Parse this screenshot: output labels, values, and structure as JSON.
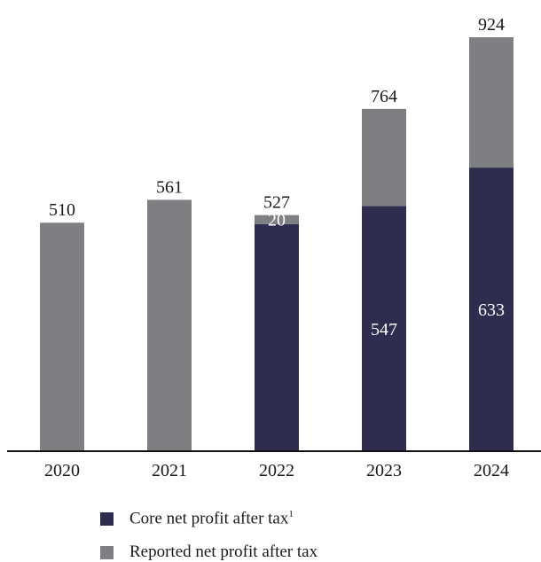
{
  "colors": {
    "core": "#2e2d4f",
    "reported": "#7e7f83",
    "axis": "#111111"
  },
  "chart_data": {
    "type": "bar",
    "stacked": true,
    "categories": [
      "2020",
      "2021",
      "2022",
      "2023",
      "2024"
    ],
    "totals": [
      510,
      561,
      527,
      764,
      924
    ],
    "series": [
      {
        "name": "Core net profit after tax",
        "values": [
          0,
          0,
          507,
          547,
          633
        ],
        "labels": [
          "",
          "",
          "",
          "547",
          "633"
        ]
      },
      {
        "name": "Reported net profit after tax",
        "values": [
          510,
          561,
          20,
          217,
          291
        ],
        "labels": [
          "",
          "",
          "20",
          "",
          ""
        ]
      }
    ],
    "legend": [
      {
        "label": "Core net profit after tax",
        "footnote": "1",
        "color_key": "core"
      },
      {
        "label": "Reported net profit after tax",
        "footnote": "",
        "color_key": "reported"
      }
    ],
    "ylim": [
      0,
      924
    ],
    "grid": false,
    "legend_position": "bottom"
  }
}
